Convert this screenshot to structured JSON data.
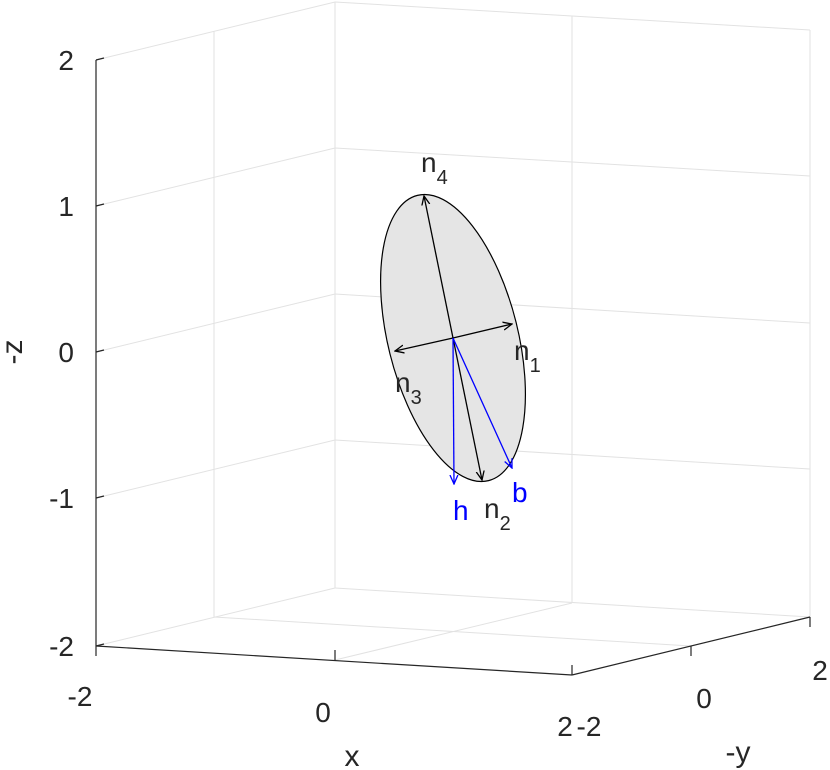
{
  "chart_data": {
    "type": "3d-diagram",
    "axes": {
      "x": {
        "label": "x",
        "ticks": [
          "-2",
          "0",
          "2"
        ],
        "lim": [
          -2,
          2
        ]
      },
      "y": {
        "label": "-y",
        "ticks": [
          "-2",
          "0",
          "2"
        ],
        "lim": [
          -2,
          2
        ]
      },
      "z": {
        "label": "-z",
        "ticks": [
          "-2",
          "-1",
          "0",
          "1",
          "2"
        ],
        "lim": [
          -2,
          2
        ]
      }
    },
    "grid": true,
    "ellipse": {
      "fill": "#e5e5e5",
      "stroke": "#000000"
    },
    "vectors": [
      {
        "name": "n",
        "sub": "1",
        "color": "#000000"
      },
      {
        "name": "n",
        "sub": "2",
        "color": "#000000"
      },
      {
        "name": "n",
        "sub": "3",
        "color": "#000000"
      },
      {
        "name": "n",
        "sub": "4",
        "color": "#000000"
      },
      {
        "name": "h",
        "sub": "",
        "color": "#0000ff"
      },
      {
        "name": "b",
        "sub": "",
        "color": "#0000ff"
      }
    ]
  }
}
